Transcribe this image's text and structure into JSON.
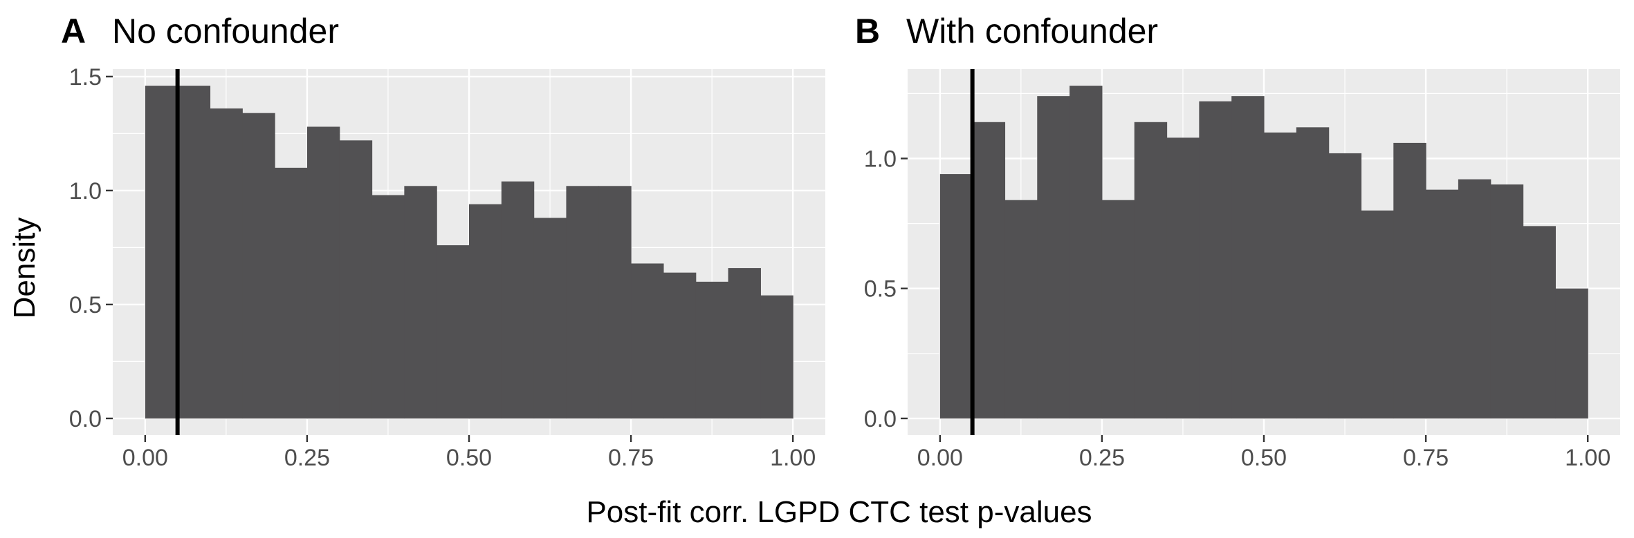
{
  "figure": {
    "ylabel": "Density",
    "xlabel": "Post-fit corr. LGPD CTC test p-values"
  },
  "colors": {
    "bar_fill": "#525153",
    "panel_background": "#ebebeb",
    "gridline": "#ffffff",
    "reference_line": "#000000",
    "tick_text": "#4d4d4d"
  },
  "chart_data": [
    {
      "type": "bar",
      "tag": "A",
      "title": "No confounder",
      "xlabel": "",
      "ylabel": "Density",
      "bin_width": 0.05,
      "bin_left_edges": [
        0.0,
        0.05,
        0.1,
        0.15,
        0.2,
        0.25,
        0.3,
        0.35,
        0.4,
        0.45,
        0.5,
        0.55,
        0.6,
        0.65,
        0.7,
        0.75,
        0.8,
        0.85,
        0.9,
        0.95
      ],
      "values": [
        1.46,
        1.46,
        1.36,
        1.34,
        1.1,
        1.28,
        1.22,
        0.98,
        1.02,
        0.76,
        0.94,
        1.04,
        0.88,
        1.02,
        1.02,
        0.68,
        0.64,
        0.6,
        0.66,
        0.54
      ],
      "vline_x": 0.05,
      "xlim": [
        -0.05,
        1.05
      ],
      "ylim": [
        -0.073,
        1.533
      ],
      "x_ticks": [
        0,
        0.25,
        0.5,
        0.75,
        1
      ],
      "x_tick_labels": [
        "0.00",
        "0.25",
        "0.50",
        "0.75",
        "1.00"
      ],
      "y_ticks": [
        0,
        0.5,
        1,
        1.5
      ],
      "y_tick_labels": [
        "0.0",
        "0.5",
        "1.0",
        "1.5"
      ],
      "grid": true
    },
    {
      "type": "bar",
      "tag": "B",
      "title": "With confounder",
      "xlabel": "",
      "ylabel": "",
      "bin_width": 0.05,
      "bin_left_edges": [
        0.0,
        0.05,
        0.1,
        0.15,
        0.2,
        0.25,
        0.3,
        0.35,
        0.4,
        0.45,
        0.5,
        0.55,
        0.6,
        0.65,
        0.7,
        0.75,
        0.8,
        0.85,
        0.9,
        0.95
      ],
      "values": [
        0.94,
        1.14,
        0.84,
        1.24,
        1.28,
        0.84,
        1.14,
        1.08,
        1.22,
        1.24,
        1.1,
        1.12,
        1.02,
        0.8,
        1.06,
        0.88,
        0.92,
        0.9,
        0.74,
        0.5
      ],
      "vline_x": 0.05,
      "xlim": [
        -0.05,
        1.05
      ],
      "ylim": [
        -0.064,
        1.344
      ],
      "x_ticks": [
        0,
        0.25,
        0.5,
        0.75,
        1
      ],
      "x_tick_labels": [
        "0.00",
        "0.25",
        "0.50",
        "0.75",
        "1.00"
      ],
      "y_ticks": [
        0,
        0.5,
        1
      ],
      "y_tick_labels": [
        "0.0",
        "0.5",
        "1.0"
      ],
      "grid": true
    }
  ]
}
